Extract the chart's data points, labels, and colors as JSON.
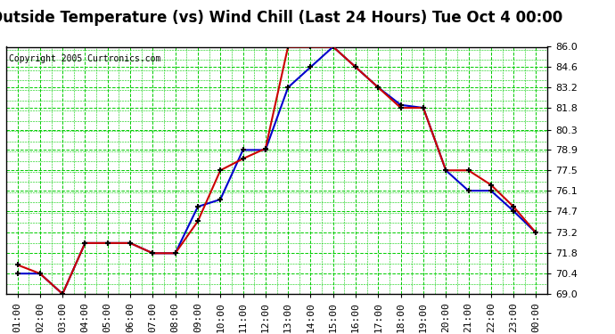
{
  "title": "Outside Temperature (vs) Wind Chill (Last 24 Hours) Tue Oct 4 00:00",
  "copyright": "Copyright 2005 Curtronics.com",
  "x_labels": [
    "01:00",
    "02:00",
    "03:00",
    "04:00",
    "05:00",
    "06:00",
    "07:00",
    "08:00",
    "09:00",
    "10:00",
    "11:00",
    "12:00",
    "13:00",
    "14:00",
    "15:00",
    "16:00",
    "17:00",
    "18:00",
    "19:00",
    "20:00",
    "21:00",
    "22:00",
    "23:00",
    "00:00"
  ],
  "outside_temp": [
    70.4,
    70.4,
    69.0,
    72.5,
    72.5,
    72.5,
    71.8,
    71.8,
    75.0,
    75.5,
    78.9,
    78.9,
    83.2,
    84.6,
    86.0,
    84.6,
    83.2,
    82.0,
    81.8,
    77.5,
    76.1,
    76.1,
    74.7,
    73.2
  ],
  "wind_chill": [
    71.0,
    70.4,
    69.0,
    72.5,
    72.5,
    72.5,
    71.8,
    71.8,
    74.0,
    77.5,
    78.3,
    79.0,
    86.0,
    86.0,
    86.0,
    84.6,
    83.2,
    81.8,
    81.8,
    77.5,
    77.5,
    76.5,
    75.0,
    73.2
  ],
  "ylim_min": 69.0,
  "ylim_max": 86.0,
  "yticks": [
    69.0,
    70.4,
    71.8,
    73.2,
    74.7,
    76.1,
    77.5,
    78.9,
    80.3,
    81.8,
    83.2,
    84.6,
    86.0
  ],
  "outside_temp_color": "#0000cc",
  "wind_chill_color": "#cc0000",
  "bg_color": "#ffffff",
  "plot_bg_color": "#ffffff",
  "grid_color": "#00cc00",
  "title_fontsize": 12,
  "tick_fontsize": 8,
  "marker": "+"
}
